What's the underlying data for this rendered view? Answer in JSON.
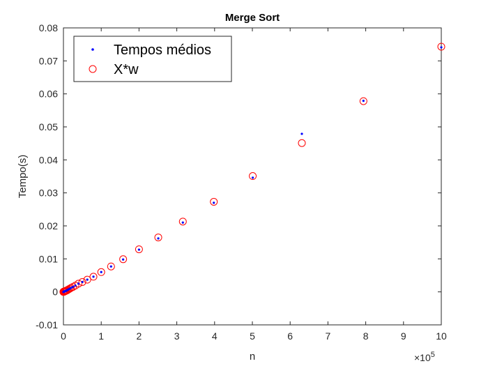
{
  "chart_data": {
    "type": "scatter",
    "title": "Merge Sort",
    "xlabel": "n",
    "ylabel": "Tempo(s)",
    "x_exponent_label": "×10",
    "x_exponent_power": "5",
    "xlim": [
      0,
      10
    ],
    "ylim": [
      -0.01,
      0.08
    ],
    "x_ticks": [
      "0",
      "1",
      "2",
      "3",
      "4",
      "5",
      "6",
      "7",
      "8",
      "9",
      "10"
    ],
    "y_ticks": [
      "-0.01",
      "0",
      "0.01",
      "0.02",
      "0.03",
      "0.04",
      "0.05",
      "0.06",
      "0.07",
      "0.08"
    ],
    "x_tick_values": [
      0,
      1,
      2,
      3,
      4,
      5,
      6,
      7,
      8,
      9,
      10
    ],
    "y_tick_values": [
      -0.01,
      0,
      0.01,
      0.02,
      0.03,
      0.04,
      0.05,
      0.06,
      0.07,
      0.08
    ],
    "grid": false,
    "legend_placement": "top-left",
    "colors": {
      "series1": "#0000ff",
      "series2": "#ff0000",
      "axis": "#262626"
    },
    "series": [
      {
        "name": "Tempos médios",
        "marker": "dot",
        "x": [
          0.001,
          0.0013,
          0.0016,
          0.002,
          0.0025,
          0.0032,
          0.004,
          0.005,
          0.0063,
          0.0079,
          0.01,
          0.0126,
          0.0158,
          0.02,
          0.0251,
          0.0316,
          0.0398,
          0.0501,
          0.0631,
          0.0794,
          0.1,
          0.126,
          0.158,
          0.2,
          0.251,
          0.316,
          0.398,
          0.501,
          0.631,
          0.794,
          1.0,
          1.26,
          1.58,
          2.0,
          2.51,
          3.16,
          3.98,
          5.01,
          6.31,
          7.94,
          10.0
        ],
        "y": [
          1e-05,
          1e-05,
          1e-05,
          1e-05,
          2e-05,
          2e-05,
          2e-05,
          3e-05,
          3e-05,
          4e-05,
          5e-05,
          6e-05,
          8e-05,
          0.0001,
          0.00013,
          0.00016,
          0.0002,
          0.00025,
          0.0003,
          0.0004,
          0.0005,
          0.0007,
          0.0009,
          0.0012,
          0.0015,
          0.0019,
          0.0025,
          0.003,
          0.0037,
          0.0046,
          0.006,
          0.0077,
          0.0098,
          0.0128,
          0.0162,
          0.021,
          0.027,
          0.0346,
          0.0479,
          0.0579,
          0.0741
        ]
      },
      {
        "name": "X*w",
        "marker": "circle",
        "x": [
          0.001,
          0.0013,
          0.0016,
          0.002,
          0.0025,
          0.0032,
          0.004,
          0.005,
          0.0063,
          0.0079,
          0.01,
          0.0126,
          0.0158,
          0.02,
          0.0251,
          0.0316,
          0.0398,
          0.0501,
          0.0631,
          0.0794,
          0.1,
          0.126,
          0.158,
          0.2,
          0.251,
          0.316,
          0.398,
          0.501,
          0.631,
          0.794,
          1.0,
          1.26,
          1.58,
          2.0,
          2.51,
          3.16,
          3.98,
          5.01,
          6.31,
          7.94,
          10.0
        ],
        "y": [
          1e-05,
          1e-05,
          1e-05,
          1e-05,
          2e-05,
          2e-05,
          2e-05,
          3e-05,
          3e-05,
          4e-05,
          5e-05,
          6e-05,
          8e-05,
          0.0001,
          0.00013,
          0.00016,
          0.0002,
          0.00025,
          0.0003,
          0.0004,
          0.0005,
          0.0007,
          0.0009,
          0.0012,
          0.0015,
          0.0019,
          0.0025,
          0.003,
          0.0037,
          0.0046,
          0.006,
          0.0077,
          0.0099,
          0.0129,
          0.0165,
          0.0213,
          0.0273,
          0.0351,
          0.0451,
          0.0578,
          0.0743
        ]
      }
    ]
  }
}
